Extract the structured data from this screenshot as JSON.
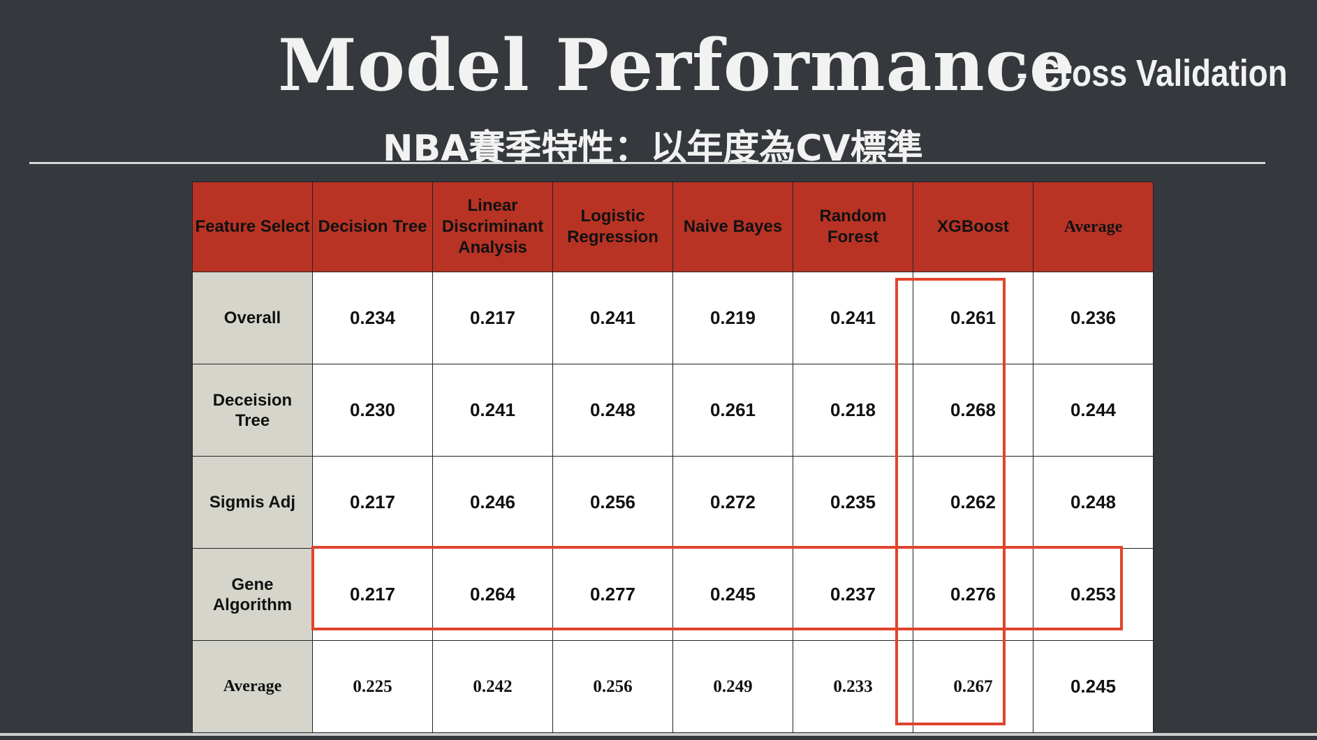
{
  "title": {
    "main": "Model Performance",
    "sub": "- Cross Validation",
    "subtitle": "NBA賽季特性：以年度為CV標準"
  },
  "colors": {
    "background": "#35383c",
    "header_fill": "#b83324",
    "row_header_fill": "#d6d5cc",
    "highlight": "#e0442c"
  },
  "table": {
    "corner": "Feature Select",
    "columns": [
      "Decision Tree",
      "Linear Discriminant Analysis",
      "Logistic Regression",
      "Naive Bayes",
      "Random Forest",
      "XGBoost",
      "Average"
    ],
    "rows": [
      {
        "label": "Overall",
        "values": [
          "0.234",
          "0.217",
          "0.241",
          "0.219",
          "0.241",
          "0.261",
          "0.236"
        ]
      },
      {
        "label": "Deceision Tree",
        "values": [
          "0.230",
          "0.241",
          "0.248",
          "0.261",
          "0.218",
          "0.268",
          "0.244"
        ]
      },
      {
        "label": "Sigmis Adj",
        "values": [
          "0.217",
          "0.246",
          "0.256",
          "0.272",
          "0.235",
          "0.262",
          "0.248"
        ]
      },
      {
        "label": "Gene Algorithm",
        "values": [
          "0.217",
          "0.264",
          "0.277",
          "0.245",
          "0.237",
          "0.276",
          "0.253"
        ]
      },
      {
        "label": "Average",
        "values": [
          "0.225",
          "0.242",
          "0.256",
          "0.249",
          "0.233",
          "0.267",
          "0.245"
        ]
      }
    ],
    "highlighted_column": "XGBoost",
    "highlighted_row": "Gene Algorithm"
  }
}
